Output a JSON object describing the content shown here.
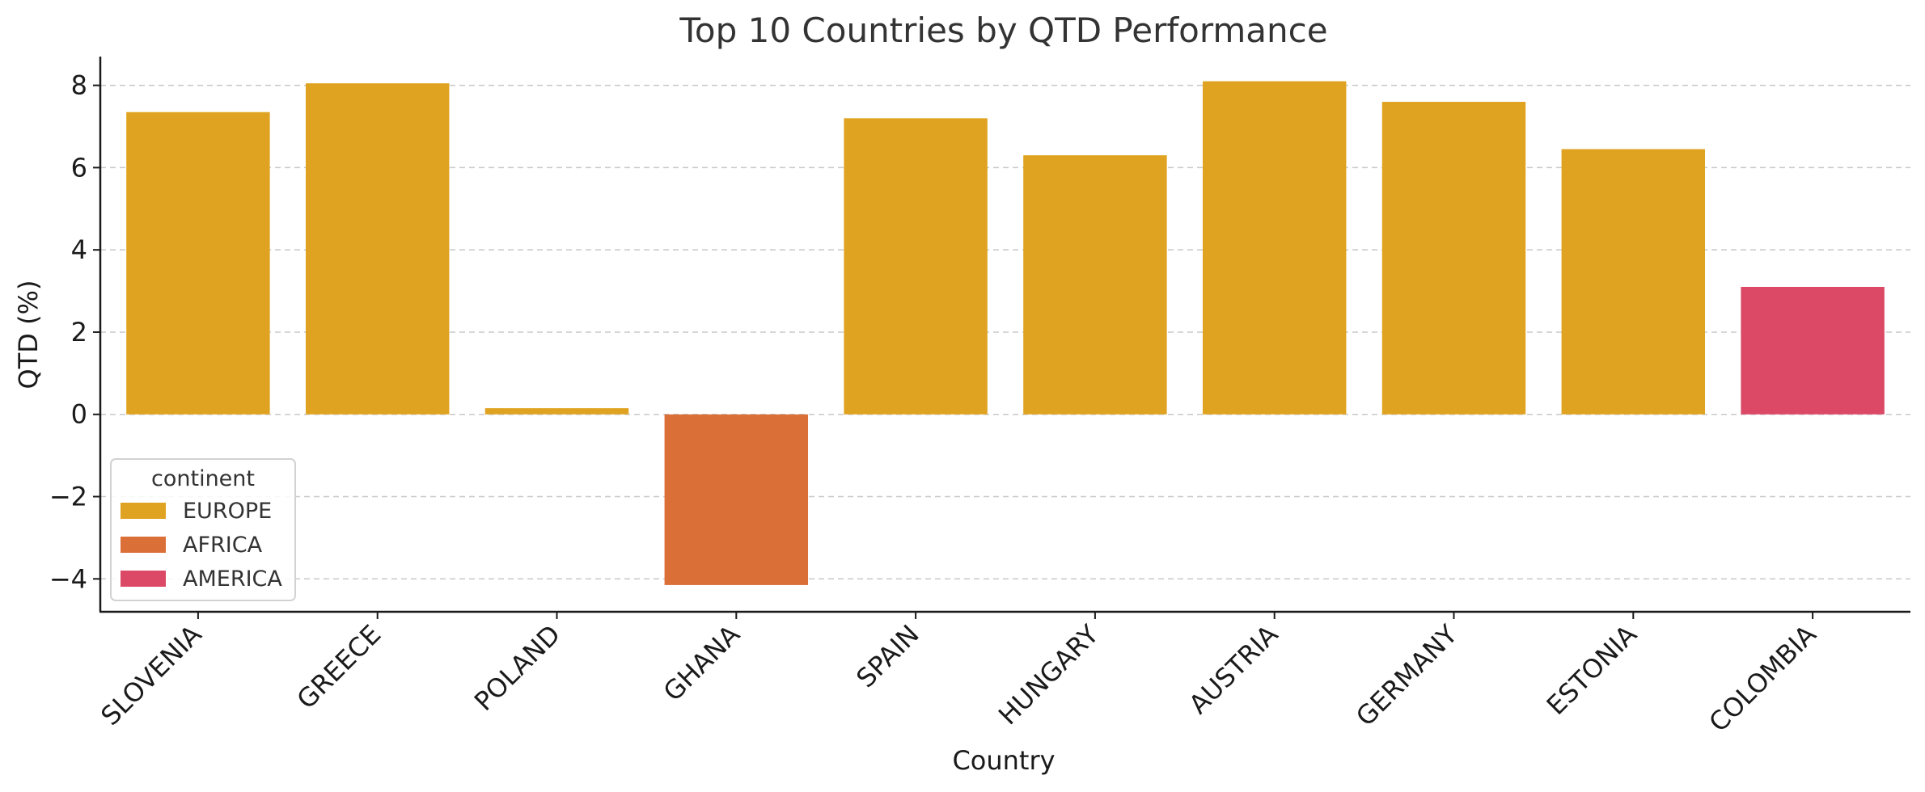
{
  "chart_data": {
    "type": "bar",
    "title": "Top 10 Countries by QTD Performance",
    "xlabel": "Country",
    "ylabel": "QTD (%)",
    "ylim": [
      -4.8,
      8.7
    ],
    "yticks": [
      -4,
      -2,
      0,
      2,
      4,
      6,
      8
    ],
    "ytick_labels": [
      "−4",
      "−2",
      "0",
      "2",
      "4",
      "6",
      "8"
    ],
    "grid": "horizontal dashed",
    "categories": [
      "SLOVENIA",
      "GREECE",
      "POLAND",
      "GHANA",
      "SPAIN",
      "HUNGARY",
      "AUSTRIA",
      "GERMANY",
      "ESTONIA",
      "COLOMBIA"
    ],
    "values": [
      7.35,
      8.05,
      0.15,
      -4.15,
      7.2,
      6.3,
      8.1,
      7.6,
      6.45,
      3.1
    ],
    "groups": [
      "EUROPE",
      "EUROPE",
      "EUROPE",
      "AFRICA",
      "EUROPE",
      "EUROPE",
      "EUROPE",
      "EUROPE",
      "EUROPE",
      "AMERICA"
    ],
    "legend": {
      "title": "continent",
      "placement": "lower-left",
      "entries": [
        {
          "label": "EUROPE",
          "color": "#e0a321"
        },
        {
          "label": "AFRICA",
          "color": "#db6f38"
        },
        {
          "label": "AMERICA",
          "color": "#db4967"
        }
      ]
    }
  }
}
